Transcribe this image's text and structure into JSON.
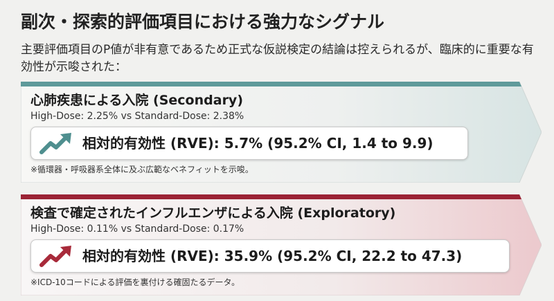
{
  "title": "副次・探索的評価項目における強力なシグナル",
  "subtitle": "主要評価項目のP値が非有意であるため正式な仮説検定の結論は控えられるが、臨床的に重要な有効性が示唆された：",
  "cards": [
    {
      "title": "心肺疾患による入院 (Secondary)",
      "compare": "High-Dose: 2.25% vs Standard-Dose: 2.38%",
      "rve": "相対的有効性 (RVE): 5.7% (95.2% CI, 1.4 to 9.9)",
      "note": "※循環器・呼吸器系全体に及ぶ広範なベネフィットを示唆。",
      "icon": "trend-up-arrow-icon",
      "accent": "#5f9a9a",
      "icon_color": "#4f8f8f"
    },
    {
      "title": "検査で確定されたインフルエンザによる入院 (Exploratory)",
      "compare": "High-Dose: 0.11% vs Standard-Dose: 0.17%",
      "rve": "相対的有効性 (RVE): 35.9% (95.2% CI, 22.2 to 47.3)",
      "note": "※ICD-10コードによる評価を裏付ける確固たるデータ。",
      "icon": "trend-up-arrow-icon",
      "accent": "#9b2335",
      "icon_color": "#a82a3a"
    }
  ]
}
